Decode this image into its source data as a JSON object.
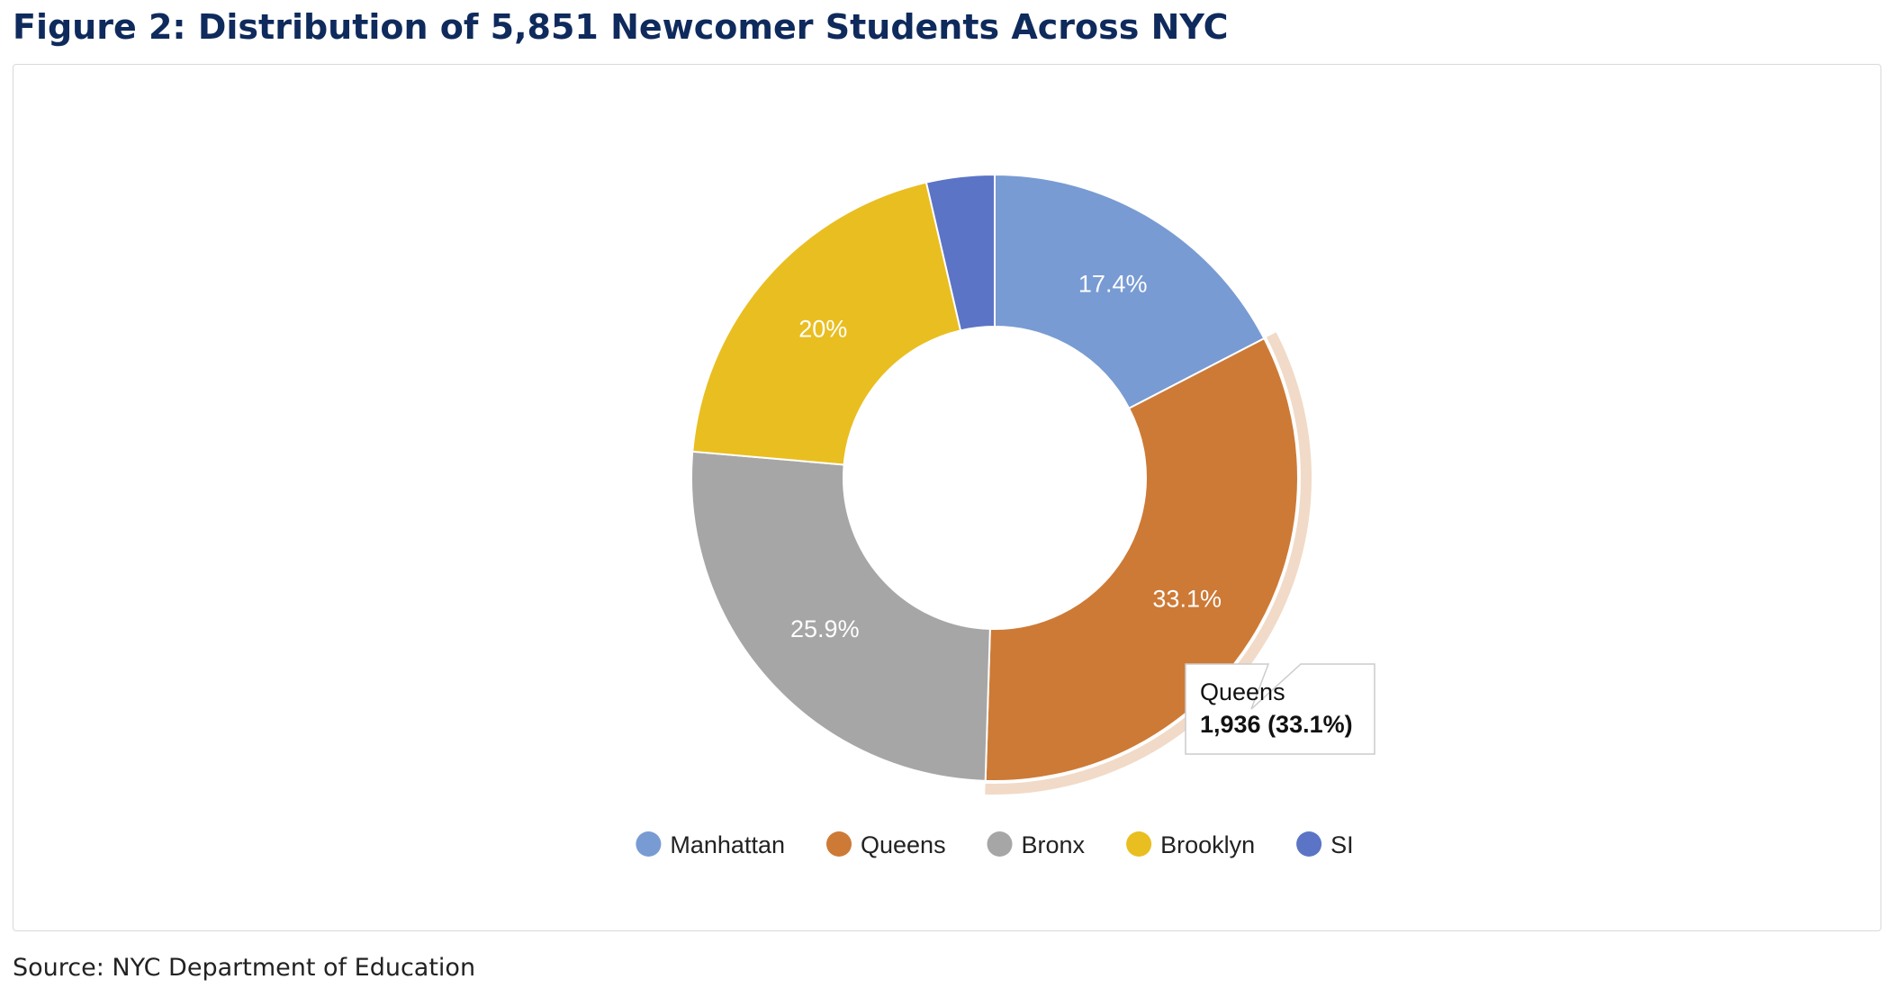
{
  "title": "Figure 2: Distribution of 5,851 Newcomer Students Across NYC",
  "source": "Source: NYC Department of Education",
  "chart_data": {
    "type": "pie",
    "variant": "donut",
    "title": "Figure 2: Distribution of 5,851 Newcomer Students Across NYC",
    "total": 5851,
    "categories": [
      "Manhattan",
      "Queens",
      "Bronx",
      "Brooklyn",
      "SI"
    ],
    "values": [
      1018,
      1936,
      1515,
      1170,
      212
    ],
    "percent_labels": [
      "17.4%",
      "33.1%",
      "25.9%",
      "20%",
      ""
    ],
    "colors": [
      "#789bd3",
      "#cd7a36",
      "#a6a6a6",
      "#e9be20",
      "#5b74c6"
    ],
    "legend": {
      "placement": "bottom",
      "entries": [
        "Manhattan",
        "Queens",
        "Bronx",
        "Brooklyn",
        "SI"
      ]
    },
    "highlighted_category": "Queens",
    "tooltip": {
      "name": "Queens",
      "value": "1,936 (33.1%)"
    }
  }
}
